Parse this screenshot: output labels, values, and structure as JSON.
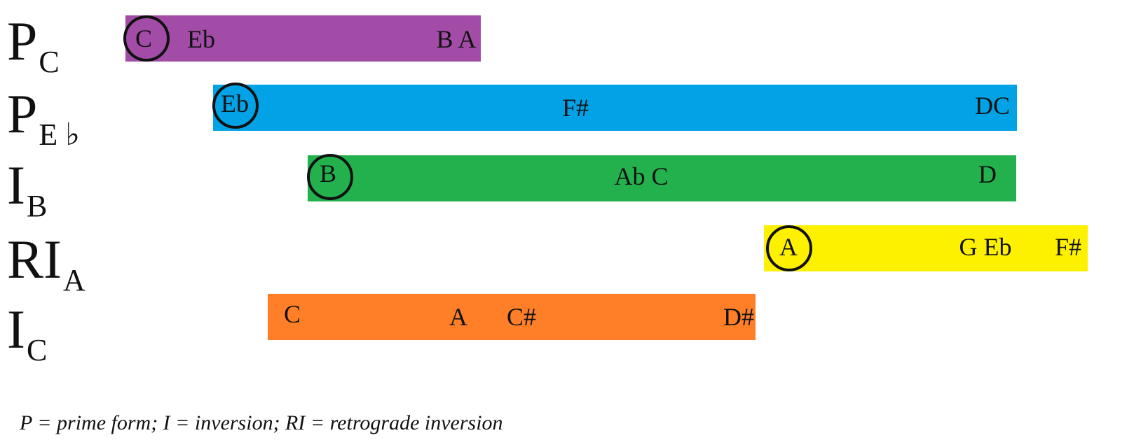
{
  "rows": [
    {
      "base": "P",
      "sub": "C",
      "color": "#a24ca7",
      "notes": [
        "C",
        "Eb",
        "B A"
      ],
      "circled": "C"
    },
    {
      "base": "P",
      "sub": "E ♭",
      "color": "#02a2e6",
      "notes": [
        "Eb",
        "F#",
        "DC"
      ],
      "circled": "Eb"
    },
    {
      "base": "I",
      "sub": "B",
      "color": "#23b14d",
      "notes": [
        "B",
        "Ab C",
        "D"
      ],
      "circled": "B"
    },
    {
      "base": "RI",
      "sub": "A",
      "color": "#fef100",
      "notes": [
        "A",
        "G Eb",
        "F#"
      ],
      "circled": "A"
    },
    {
      "base": "I",
      "sub": "C",
      "color": "#fe7f27",
      "notes": [
        "C",
        "A",
        "C#",
        "D#"
      ],
      "circled": ""
    }
  ],
  "legend": "P = prime form; I = inversion; RI = retrograde inversion"
}
